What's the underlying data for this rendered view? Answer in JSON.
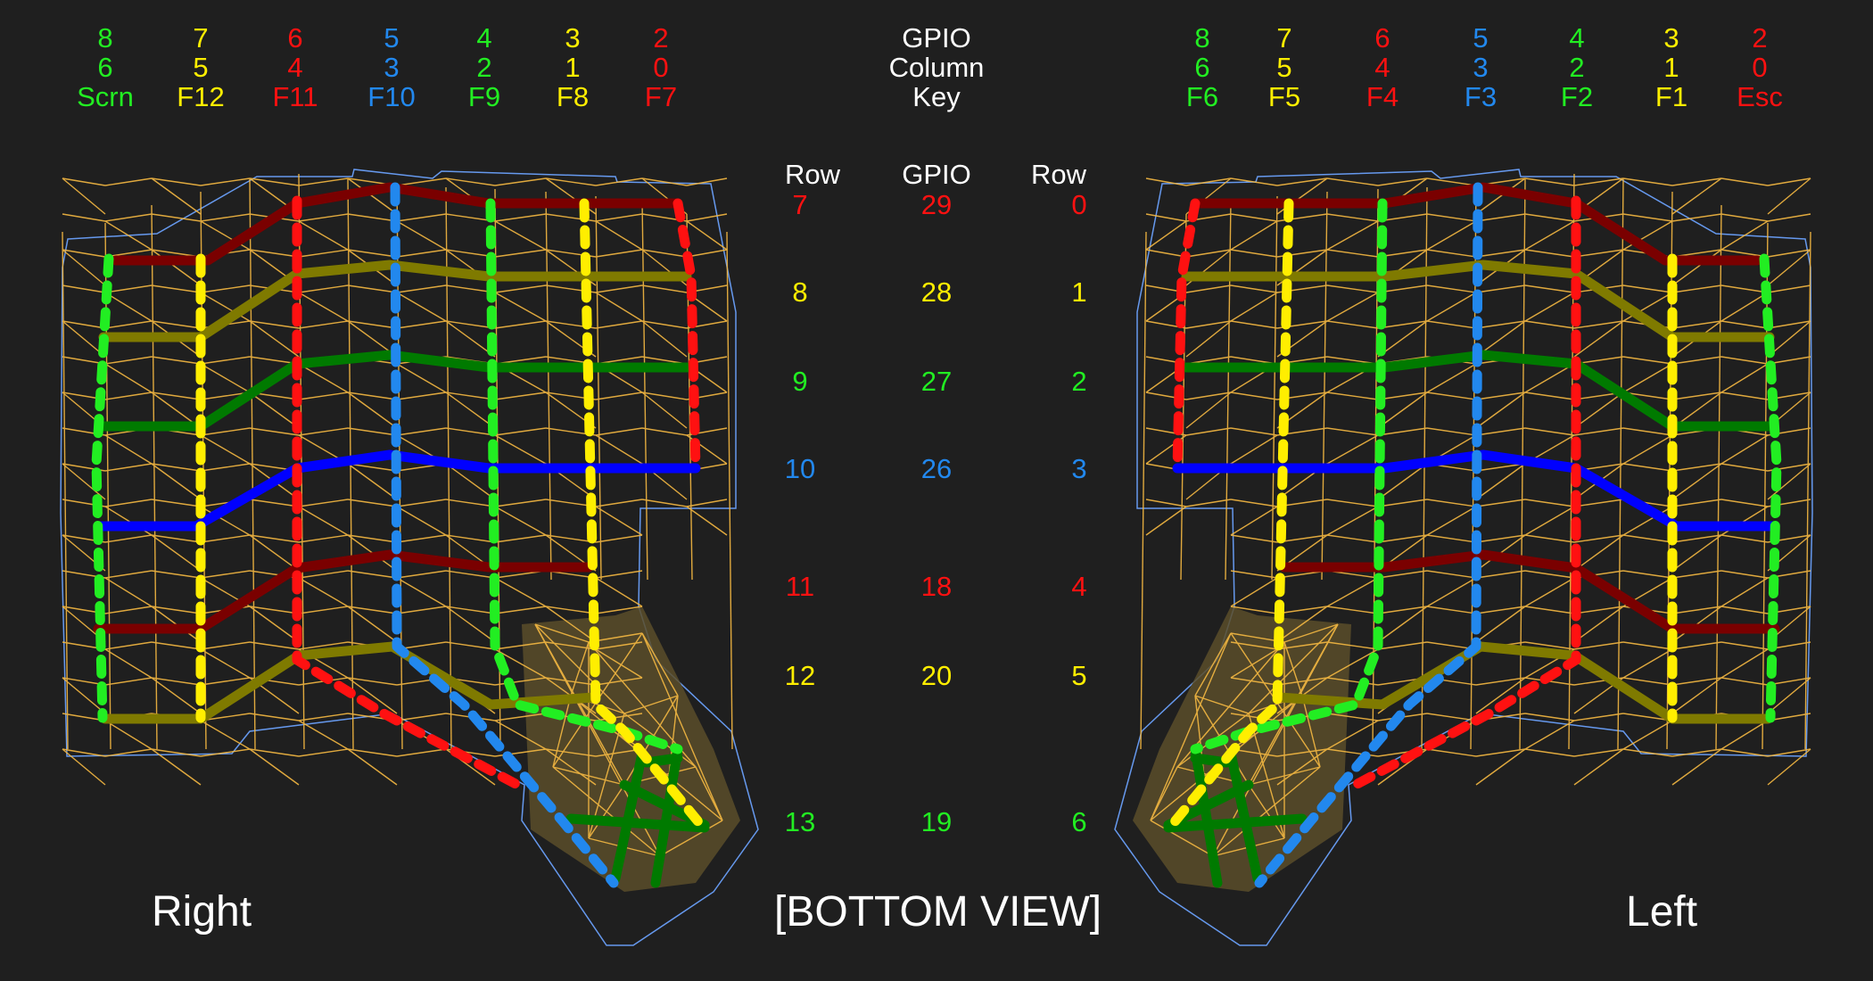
{
  "colors": {
    "green": "#22ee22",
    "yellow": "#ffee00",
    "red": "#ff1111",
    "blue": "#2288ee",
    "white": "#ffffff",
    "row_red": "#7a0000",
    "row_olive": "#7f7a00",
    "row_green": "#007a00",
    "row_blue": "#0000ff",
    "frame": "#6699ee",
    "mesh": "#f5b942",
    "fill": "#5a4d2a"
  },
  "center_header": {
    "gpio": "GPIO",
    "column": "Column",
    "key": "Key"
  },
  "right_columns": [
    {
      "gpio": "8",
      "column": "6",
      "key": "Scrn",
      "color": "green"
    },
    {
      "gpio": "7",
      "column": "5",
      "key": "F12",
      "color": "yellow"
    },
    {
      "gpio": "6",
      "column": "4",
      "key": "F11",
      "color": "red"
    },
    {
      "gpio": "5",
      "column": "3",
      "key": "F10",
      "color": "blue"
    },
    {
      "gpio": "4",
      "column": "2",
      "key": "F9",
      "color": "green"
    },
    {
      "gpio": "3",
      "column": "1",
      "key": "F8",
      "color": "yellow"
    },
    {
      "gpio": "2",
      "column": "0",
      "key": "F7",
      "color": "red"
    }
  ],
  "left_columns": [
    {
      "gpio": "8",
      "column": "6",
      "key": "F6",
      "color": "green"
    },
    {
      "gpio": "7",
      "column": "5",
      "key": "F5",
      "color": "yellow"
    },
    {
      "gpio": "6",
      "column": "4",
      "key": "F4",
      "color": "red"
    },
    {
      "gpio": "5",
      "column": "3",
      "key": "F3",
      "color": "blue"
    },
    {
      "gpio": "4",
      "column": "2",
      "key": "F2",
      "color": "green"
    },
    {
      "gpio": "3",
      "column": "1",
      "key": "F1",
      "color": "yellow"
    },
    {
      "gpio": "2",
      "column": "0",
      "key": "Esc",
      "color": "red"
    }
  ],
  "row_table": {
    "headers": {
      "row_left": "Row",
      "gpio": "GPIO",
      "row_right": "Row"
    },
    "rows": [
      {
        "left": "7",
        "gpio": "29",
        "right": "0",
        "color": "red"
      },
      {
        "left": "8",
        "gpio": "28",
        "right": "1",
        "color": "yellow"
      },
      {
        "left": "9",
        "gpio": "27",
        "right": "2",
        "color": "green"
      },
      {
        "left": "10",
        "gpio": "26",
        "right": "3",
        "color": "blue"
      },
      {
        "left": "11",
        "gpio": "18",
        "right": "4",
        "color": "red"
      },
      {
        "left": "12",
        "gpio": "20",
        "right": "5",
        "color": "yellow"
      },
      {
        "left": "13",
        "gpio": "19",
        "right": "6",
        "color": "green"
      }
    ]
  },
  "labels": {
    "right": "Right",
    "left": "Left",
    "view": "[BOTTOM VIEW]"
  }
}
